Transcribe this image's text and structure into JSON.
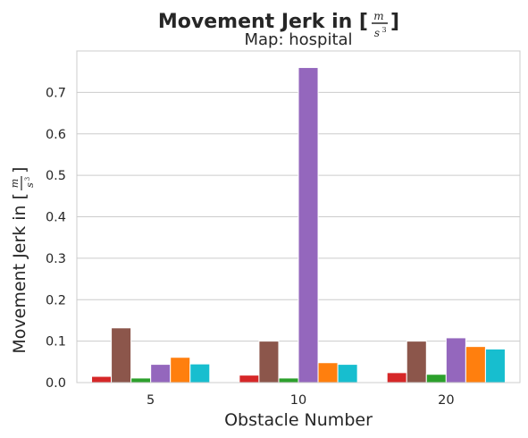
{
  "chart_data": {
    "type": "bar",
    "title": {
      "prefix": "Movement Jerk in [",
      "unit_numerator": "m",
      "unit_denominator": "s",
      "unit_exponent": "3",
      "suffix": "]"
    },
    "subtitle": "Map: hospital",
    "xlabel": "Obstacle Number",
    "ylabel": {
      "prefix": "Movement Jerk in [",
      "unit_numerator": "m",
      "unit_denominator": "s",
      "unit_exponent": "3",
      "suffix": "]"
    },
    "categories": [
      "5",
      "10",
      "20"
    ],
    "ylim": [
      0,
      0.8
    ],
    "yticks": [
      0.0,
      0.1,
      0.2,
      0.3,
      0.4,
      0.5,
      0.6,
      0.7
    ],
    "ytick_labels": [
      "0.0",
      "0.1",
      "0.2",
      "0.3",
      "0.4",
      "0.5",
      "0.6",
      "0.7"
    ],
    "grid": "horizontal",
    "legend": "none",
    "series": [
      {
        "color": "#d62728",
        "values": [
          0.015,
          0.018,
          0.024
        ]
      },
      {
        "color": "#8c564b",
        "values": [
          0.132,
          0.1,
          0.1
        ]
      },
      {
        "color": "#2ca02c",
        "values": [
          0.011,
          0.011,
          0.02
        ]
      },
      {
        "color": "#9467bd",
        "values": [
          0.044,
          0.76,
          0.108
        ]
      },
      {
        "color": "#ff7f0e",
        "values": [
          0.061,
          0.048,
          0.087
        ]
      },
      {
        "color": "#17becf",
        "values": [
          0.045,
          0.044,
          0.081
        ]
      }
    ]
  }
}
